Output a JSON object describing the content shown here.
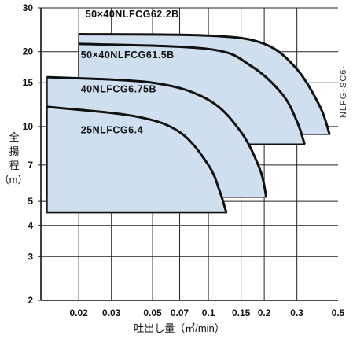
{
  "chart_data": {
    "type": "area",
    "x_scale": "log",
    "y_scale": "log",
    "xlim": [
      0.0125,
      0.5
    ],
    "ylim": [
      2,
      30
    ],
    "x_ticks": [
      {
        "value": 0.02,
        "label": "0.02"
      },
      {
        "value": 0.03,
        "label": "0.03"
      },
      {
        "value": 0.05,
        "label": "0.05"
      },
      {
        "value": 0.07,
        "label": "0.07"
      },
      {
        "value": 0.1,
        "label": "0.1"
      },
      {
        "value": 0.15,
        "label": "0.15"
      },
      {
        "value": 0.2,
        "label": "0.2"
      },
      {
        "value": 0.3,
        "label": "0.3"
      },
      {
        "value": 0.5,
        "label": "0.5"
      }
    ],
    "y_ticks": [
      {
        "value": 2,
        "label": "2"
      },
      {
        "value": 3,
        "label": "3"
      },
      {
        "value": 4,
        "label": "4"
      },
      {
        "value": 5,
        "label": "5"
      },
      {
        "value": 7,
        "label": "7"
      },
      {
        "value": 10,
        "label": "10"
      },
      {
        "value": 15,
        "label": "15"
      },
      {
        "value": 20,
        "label": "20"
      },
      {
        "value": 30,
        "label": "30"
      }
    ],
    "x_grid": [
      0.02,
      0.03,
      0.05,
      0.07,
      0.1,
      0.15,
      0.2,
      0.3
    ],
    "y_grid": [
      3,
      4,
      5,
      7,
      10,
      15,
      20
    ],
    "xlabel": "吐出し量（㎥/min）",
    "ylabel": [
      "全",
      "揚",
      "程",
      "（m）"
    ],
    "side_note": "NLFG-SC6-",
    "grid": true,
    "series": [
      {
        "name": "50×40NLFCG62.2B",
        "region": [
          [
            0.02,
            9.3
          ],
          [
            0.02,
            23.5
          ],
          [
            0.1,
            23.2
          ],
          [
            0.2,
            21.5
          ],
          [
            0.3,
            17
          ],
          [
            0.4,
            12
          ],
          [
            0.45,
            9.3
          ]
        ]
      },
      {
        "name": "50×40NLFCG61.5B",
        "region": [
          [
            0.02,
            8.5
          ],
          [
            0.02,
            21.5
          ],
          [
            0.1,
            20.5
          ],
          [
            0.17,
            17.5
          ],
          [
            0.25,
            13.5
          ],
          [
            0.3,
            10.5
          ],
          [
            0.33,
            8.5
          ]
        ]
      },
      {
        "name": "40NLFCG6.75B",
        "region": [
          [
            0.0135,
            5.2
          ],
          [
            0.0135,
            15.8
          ],
          [
            0.05,
            15
          ],
          [
            0.1,
            12.8
          ],
          [
            0.15,
            9.5
          ],
          [
            0.19,
            6.7
          ],
          [
            0.205,
            5.2
          ]
        ]
      },
      {
        "name": "25NLFCG6.4",
        "region": [
          [
            0.0135,
            4.5
          ],
          [
            0.0135,
            12
          ],
          [
            0.04,
            11
          ],
          [
            0.07,
            9.5
          ],
          [
            0.1,
            7
          ],
          [
            0.115,
            5.5
          ],
          [
            0.125,
            4.5
          ]
        ]
      }
    ]
  }
}
